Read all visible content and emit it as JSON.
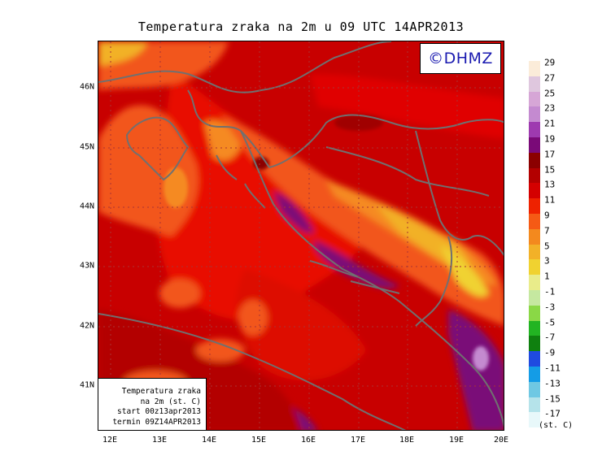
{
  "title": "Temperatura zraka na 2m u 09 UTC 14APR2013",
  "logo": "©DHMZ",
  "info": {
    "line1": "Temperatura zraka",
    "line2": "na 2m (st. C)",
    "line3": "start 00z13apr2013",
    "line4": "termin 09Z14APR2013"
  },
  "axes": {
    "x_ticks": [
      "12E",
      "13E",
      "14E",
      "15E",
      "16E",
      "17E",
      "18E",
      "19E",
      "20E"
    ],
    "y_ticks": [
      "46N",
      "45N",
      "44N",
      "43N",
      "42N",
      "41N"
    ]
  },
  "legend": {
    "units": "(st. C)",
    "labels": [
      "29",
      "27",
      "25",
      "23",
      "21",
      "19",
      "17",
      "15",
      "13",
      "11",
      "9",
      "7",
      "5",
      "3",
      "1",
      "-1",
      "-3",
      "-5",
      "-7",
      "-9",
      "-11",
      "-13",
      "-15",
      "-17"
    ],
    "colors": [
      "#fbecd9",
      "#dfc7de",
      "#d6a6d6",
      "#c48ad0",
      "#9e3ab0",
      "#7a0a78",
      "#8b0000",
      "#b30000",
      "#d40000",
      "#ee2200",
      "#f55a15",
      "#f3891e",
      "#f2b128",
      "#f0d230",
      "#e9ec8a",
      "#c5e8a0",
      "#8ad846",
      "#22b422",
      "#0f800f",
      "#1f4ae0",
      "#149ce6",
      "#6fc8e3",
      "#b5e3ea",
      "#e8f8fa"
    ]
  },
  "map": {
    "lon_range": [
      11.8,
      20.0
    ],
    "lat_range": [
      40.25,
      46.8
    ],
    "grid": "dotted"
  }
}
